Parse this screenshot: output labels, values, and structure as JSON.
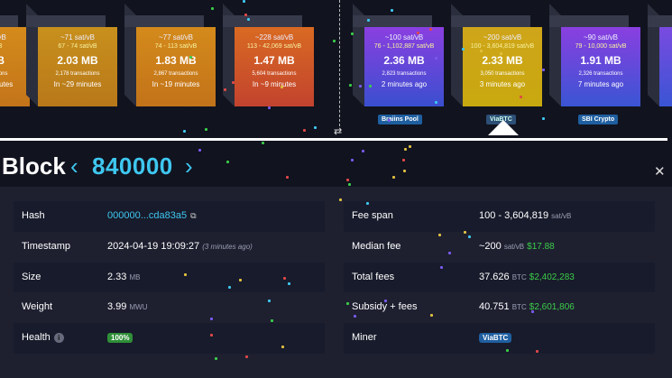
{
  "blocks": [
    {
      "fee": "~... sat/vB",
      "range": "... sat/vB",
      "size": "... MB",
      "tx": "... transactions",
      "time": "In ~... minutes"
    },
    {
      "fee": "~71 sat/vB",
      "range": "67 - 74 sat/vB",
      "size": "2.03 MB",
      "tx": "2,178 transactions",
      "time": "In ~29 minutes"
    },
    {
      "fee": "~77 sat/vB",
      "range": "74 - 113 sat/vB",
      "size": "1.83 MB",
      "tx": "2,867 transactions",
      "time": "In ~19 minutes"
    },
    {
      "fee": "~228 sat/vB",
      "range": "113 - 42,069 sat/vB",
      "size": "1.47 MB",
      "tx": "5,604 transactions",
      "time": "In ~9 minutes"
    },
    {
      "fee": "~100 sat/vB",
      "range": "76 - 1,102,887 sat/vB",
      "size": "2.36 MB",
      "tx": "2,823 transactions",
      "time": "2 minutes ago",
      "pool": "Braiins Pool"
    },
    {
      "fee": "~200 sat/vB",
      "range": "100 - 3,604,819 sat/vB",
      "size": "2.33 MB",
      "tx": "3,050 transactions",
      "time": "3 minutes ago",
      "pool": "ViaBTC"
    },
    {
      "fee": "~90 sat/vB",
      "range": "79 - 10,000 sat/vB",
      "size": "1.91 MB",
      "tx": "2,326 transactions",
      "time": "7 minutes ago",
      "pool": "SBI Crypto"
    }
  ],
  "block_title": "Block",
  "block_height": "840000",
  "details_left": [
    {
      "label": "Hash",
      "value": "000000...cda83a5"
    },
    {
      "label": "Timestamp",
      "value": "2024-04-19 19:09:27",
      "note": "(3 minutes ago)"
    },
    {
      "label": "Size",
      "value": "2.33",
      "unit": "MB"
    },
    {
      "label": "Weight",
      "value": "3.99",
      "unit": "MWU"
    },
    {
      "label": "Health",
      "badge": "100%"
    }
  ],
  "details_right": [
    {
      "label": "Fee span",
      "value": "100 - 3,604,819",
      "unit": "sat/vB"
    },
    {
      "label": "Median fee",
      "value": "~200",
      "unit": "sat/vB",
      "fiat": "$17.88"
    },
    {
      "label": "Total fees",
      "value": "37.626",
      "unit": "BTC",
      "fiat": "$2,402,283"
    },
    {
      "label": "Subsidy + fees",
      "value": "40.751",
      "unit": "BTC",
      "fiat": "$2,601,806"
    },
    {
      "label": "Miner",
      "badge": "ViaBTC"
    }
  ],
  "colors": {
    "accent": "#3ec7f0",
    "fiat_green": "#3bcc49",
    "panel_bg": "#1e2030",
    "page_bg": "#11131f"
  }
}
